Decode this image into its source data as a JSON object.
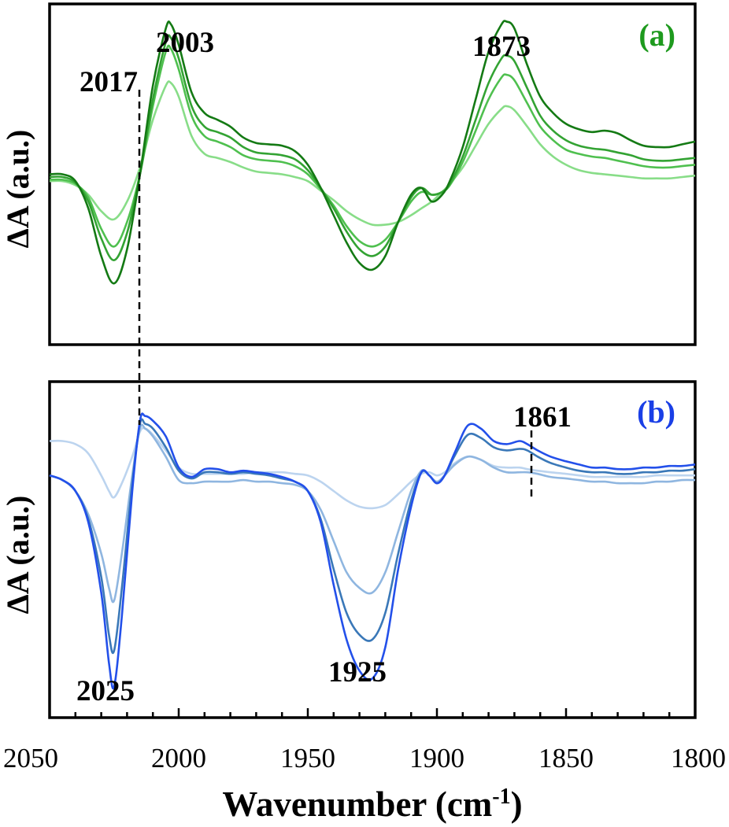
{
  "figure": {
    "xlabel_main": "Wavenumber (cm",
    "xlabel_sup": "-1",
    "xlabel_close": ")",
    "xticks": [
      2050,
      2000,
      1950,
      1900,
      1850,
      1800
    ],
    "xlim": [
      2050,
      1800
    ]
  },
  "chart_data": [
    {
      "type": "line",
      "panel_label": "(a)",
      "panel_color": "#1e9a1e",
      "ylabel": "ΔA (a.u.)",
      "xlim": [
        2050,
        1800
      ],
      "ylim": [
        -1.2,
        1.3
      ],
      "annotations": [
        {
          "text": "2003",
          "x": 2003
        },
        {
          "text": "1873",
          "x": 1873
        },
        {
          "text": "2017",
          "x": 2017,
          "dashed_guide": true
        }
      ],
      "series_colors": [
        "#147a14",
        "#33a333",
        "#4fc04f",
        "#88dd88"
      ],
      "x": [
        2050,
        2045,
        2040,
        2035,
        2030,
        2025,
        2020,
        2015,
        2010,
        2005,
        2003,
        2000,
        1995,
        1990,
        1985,
        1980,
        1975,
        1970,
        1965,
        1960,
        1955,
        1950,
        1945,
        1940,
        1935,
        1930,
        1925,
        1920,
        1915,
        1910,
        1906,
        1902,
        1898,
        1895,
        1890,
        1885,
        1880,
        1875,
        1873,
        1870,
        1865,
        1860,
        1855,
        1850,
        1845,
        1840,
        1835,
        1830,
        1825,
        1820,
        1815,
        1810,
        1805,
        1800
      ],
      "series": [
        {
          "values": [
            0.05,
            0.05,
            0.0,
            -0.2,
            -0.55,
            -0.75,
            -0.5,
            0.05,
            0.7,
            1.12,
            1.15,
            1.0,
            0.65,
            0.5,
            0.45,
            0.4,
            0.32,
            0.28,
            0.27,
            0.26,
            0.22,
            0.12,
            -0.05,
            -0.25,
            -0.45,
            -0.6,
            -0.65,
            -0.55,
            -0.3,
            -0.1,
            -0.05,
            -0.15,
            -0.1,
            0.0,
            0.25,
            0.6,
            0.95,
            1.15,
            1.17,
            1.12,
            0.85,
            0.62,
            0.5,
            0.42,
            0.38,
            0.36,
            0.37,
            0.35,
            0.3,
            0.26,
            0.25,
            0.25,
            0.27,
            0.29
          ]
        },
        {
          "values": [
            0.03,
            0.03,
            -0.01,
            -0.15,
            -0.42,
            -0.58,
            -0.38,
            0.05,
            0.6,
            1.02,
            1.05,
            0.9,
            0.55,
            0.4,
            0.36,
            0.32,
            0.25,
            0.21,
            0.2,
            0.19,
            0.16,
            0.08,
            -0.05,
            -0.2,
            -0.37,
            -0.5,
            -0.55,
            -0.48,
            -0.3,
            -0.12,
            -0.05,
            -0.1,
            -0.08,
            -0.02,
            0.18,
            0.45,
            0.72,
            0.9,
            0.92,
            0.88,
            0.68,
            0.48,
            0.37,
            0.3,
            0.26,
            0.24,
            0.23,
            0.21,
            0.19,
            0.16,
            0.15,
            0.15,
            0.16,
            0.17
          ]
        },
        {
          "values": [
            0.01,
            0.01,
            -0.02,
            -0.12,
            -0.35,
            -0.48,
            -0.3,
            0.05,
            0.55,
            0.95,
            0.97,
            0.82,
            0.48,
            0.33,
            0.29,
            0.25,
            0.19,
            0.16,
            0.15,
            0.14,
            0.11,
            0.05,
            -0.06,
            -0.18,
            -0.33,
            -0.44,
            -0.48,
            -0.43,
            -0.3,
            -0.15,
            -0.08,
            -0.1,
            -0.08,
            -0.03,
            0.14,
            0.37,
            0.6,
            0.76,
            0.78,
            0.74,
            0.57,
            0.4,
            0.3,
            0.23,
            0.2,
            0.18,
            0.17,
            0.15,
            0.13,
            0.11,
            0.1,
            0.1,
            0.11,
            0.12
          ]
        },
        {
          "values": [
            0.0,
            0.0,
            -0.03,
            -0.1,
            -0.22,
            -0.28,
            -0.15,
            0.1,
            0.45,
            0.7,
            0.72,
            0.62,
            0.33,
            0.2,
            0.17,
            0.14,
            0.1,
            0.07,
            0.06,
            0.05,
            0.03,
            0.0,
            -0.07,
            -0.14,
            -0.22,
            -0.28,
            -0.32,
            -0.32,
            -0.3,
            -0.25,
            -0.2,
            -0.15,
            -0.08,
            -0.02,
            0.1,
            0.26,
            0.42,
            0.53,
            0.55,
            0.52,
            0.4,
            0.27,
            0.18,
            0.12,
            0.08,
            0.06,
            0.05,
            0.04,
            0.03,
            0.02,
            0.02,
            0.02,
            0.03,
            0.04
          ]
        }
      ]
    },
    {
      "type": "line",
      "panel_label": "(b)",
      "panel_color": "#1a3fe6",
      "ylabel": "ΔA (a.u.)",
      "xlim": [
        2050,
        1800
      ],
      "ylim": [
        -1.55,
        0.6
      ],
      "annotations": [
        {
          "text": "2025",
          "x": 2025
        },
        {
          "text": "1925",
          "x": 1925
        },
        {
          "text": "1861",
          "x": 1861,
          "dashed_guide": true
        }
      ],
      "series_colors": [
        "#2350ea",
        "#3a78b8",
        "#8fb6e0",
        "#bcd4ef"
      ],
      "x": [
        2050,
        2045,
        2040,
        2035,
        2030,
        2027,
        2025,
        2022,
        2018,
        2015,
        2013,
        2010,
        2005,
        2000,
        1995,
        1990,
        1985,
        1980,
        1975,
        1970,
        1965,
        1960,
        1955,
        1950,
        1945,
        1940,
        1935,
        1930,
        1925,
        1920,
        1915,
        1910,
        1906,
        1903,
        1900,
        1897,
        1893,
        1888,
        1883,
        1878,
        1873,
        1868,
        1865,
        1861,
        1856,
        1850,
        1845,
        1840,
        1835,
        1830,
        1825,
        1820,
        1815,
        1810,
        1805,
        1800
      ],
      "series": [
        {
          "values": [
            0.0,
            -0.03,
            -0.1,
            -0.3,
            -0.75,
            -1.2,
            -1.35,
            -0.9,
            -0.1,
            0.35,
            0.38,
            0.35,
            0.25,
            0.05,
            -0.01,
            0.04,
            0.04,
            0.02,
            0.03,
            0.02,
            0.01,
            -0.01,
            -0.04,
            -0.1,
            -0.3,
            -0.7,
            -1.05,
            -1.25,
            -1.3,
            -1.1,
            -0.6,
            -0.2,
            0.02,
            0.0,
            -0.05,
            0.0,
            0.15,
            0.32,
            0.3,
            0.22,
            0.2,
            0.22,
            0.2,
            0.16,
            0.12,
            0.09,
            0.07,
            0.05,
            0.05,
            0.04,
            0.04,
            0.05,
            0.05,
            0.06,
            0.06,
            0.07
          ]
        },
        {
          "values": [
            0.0,
            -0.03,
            -0.1,
            -0.28,
            -0.65,
            -1.02,
            -1.12,
            -0.72,
            -0.05,
            0.33,
            0.33,
            0.3,
            0.18,
            0.03,
            -0.02,
            0.02,
            0.02,
            0.01,
            0.02,
            0.01,
            0.0,
            -0.02,
            -0.04,
            -0.1,
            -0.28,
            -0.6,
            -0.88,
            -1.02,
            -1.05,
            -0.88,
            -0.5,
            -0.16,
            0.02,
            0.0,
            -0.05,
            0.0,
            0.13,
            0.26,
            0.24,
            0.18,
            0.16,
            0.17,
            0.16,
            0.12,
            0.08,
            0.05,
            0.03,
            0.02,
            0.02,
            0.01,
            0.01,
            0.02,
            0.02,
            0.03,
            0.03,
            0.04
          ]
        },
        {
          "values": [
            0.0,
            -0.03,
            -0.1,
            -0.25,
            -0.5,
            -0.72,
            -0.8,
            -0.5,
            0.0,
            0.3,
            0.3,
            0.25,
            0.12,
            -0.03,
            -0.05,
            -0.04,
            -0.04,
            -0.04,
            -0.03,
            -0.04,
            -0.04,
            -0.05,
            -0.06,
            -0.1,
            -0.22,
            -0.42,
            -0.62,
            -0.72,
            -0.75,
            -0.62,
            -0.36,
            -0.1,
            0.03,
            0.0,
            -0.04,
            0.0,
            0.07,
            0.12,
            0.1,
            0.05,
            0.02,
            0.02,
            0.02,
            0.01,
            -0.01,
            -0.02,
            -0.03,
            -0.04,
            -0.04,
            -0.05,
            -0.05,
            -0.05,
            -0.04,
            -0.04,
            -0.03,
            -0.03
          ]
        },
        {
          "values": [
            0.22,
            0.22,
            0.2,
            0.14,
            0.0,
            -0.1,
            -0.14,
            -0.05,
            0.12,
            0.28,
            0.3,
            0.26,
            0.16,
            0.05,
            0.01,
            0.01,
            0.01,
            0.01,
            0.01,
            0.02,
            0.02,
            0.02,
            0.01,
            0.0,
            -0.04,
            -0.1,
            -0.16,
            -0.2,
            -0.21,
            -0.19,
            -0.12,
            -0.04,
            0.01,
            0.02,
            0.0,
            0.02,
            0.08,
            0.12,
            0.1,
            0.06,
            0.05,
            0.05,
            0.04,
            0.03,
            0.02,
            0.01,
            0.0,
            -0.01,
            -0.01,
            -0.01,
            -0.01,
            -0.01,
            0.0,
            0.0,
            0.0,
            0.0
          ]
        }
      ]
    }
  ]
}
